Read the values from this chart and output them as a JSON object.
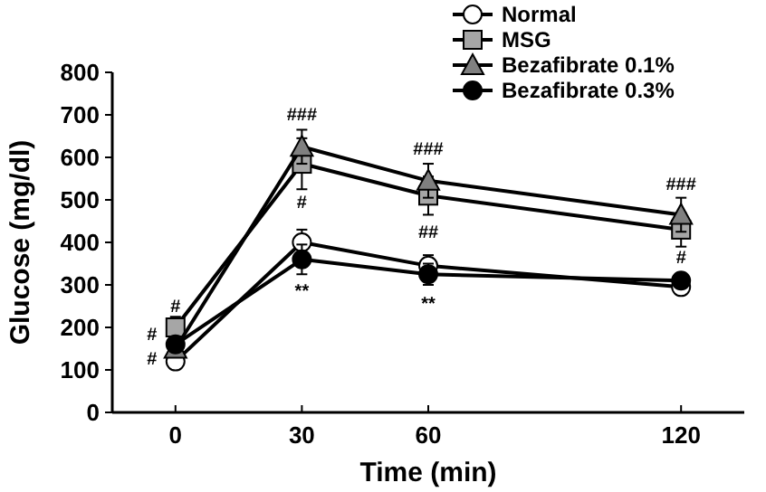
{
  "chart_data": {
    "type": "line",
    "xlabel": "Time (min)",
    "ylabel": "Glucose (mg/dl)",
    "xlim": [
      -15,
      135
    ],
    "xticks": [
      0,
      30,
      60,
      120
    ],
    "ylim": [
      0,
      800
    ],
    "yticks": [
      0,
      100,
      200,
      300,
      400,
      500,
      600,
      700,
      800
    ],
    "x": [
      0,
      30,
      60,
      120
    ],
    "legend": "top right",
    "grid": false,
    "line_style": "solid",
    "series": [
      {
        "name": "Normal",
        "color": "#ffffff",
        "marker": "circle",
        "values": [
          120,
          400,
          345,
          295
        ],
        "errors": [
          10,
          30,
          25,
          15
        ]
      },
      {
        "name": "MSG",
        "color": "#a6a6a6",
        "marker": "square",
        "values": [
          200,
          585,
          510,
          430
        ],
        "errors": [
          25,
          60,
          45,
          40
        ]
      },
      {
        "name": "Bezafibrate 0.1%",
        "color": "#808080",
        "marker": "triangle",
        "values": [
          150,
          625,
          545,
          465
        ],
        "errors": [
          15,
          40,
          40,
          40
        ]
      },
      {
        "name": "Bezafibrate 0.3%",
        "color": "#000000",
        "marker": "circle",
        "values": [
          160,
          360,
          325,
          310
        ],
        "errors": [
          10,
          35,
          25,
          15
        ]
      }
    ],
    "annotations": [
      {
        "text": "#",
        "x": 0,
        "y": 200
      },
      {
        "text": "#",
        "x": 0,
        "y": 160
      },
      {
        "text": "#",
        "x": 0,
        "y": 150
      },
      {
        "text": "###",
        "x": 30,
        "y": 625
      },
      {
        "text": "#",
        "x": 30,
        "y": 585
      },
      {
        "text": "**",
        "x": 30,
        "y": 360
      },
      {
        "text": "###",
        "x": 60,
        "y": 545
      },
      {
        "text": "##",
        "x": 60,
        "y": 510
      },
      {
        "text": "**",
        "x": 60,
        "y": 325
      },
      {
        "text": "###",
        "x": 120,
        "y": 465
      },
      {
        "text": "#",
        "x": 120,
        "y": 430
      }
    ]
  }
}
